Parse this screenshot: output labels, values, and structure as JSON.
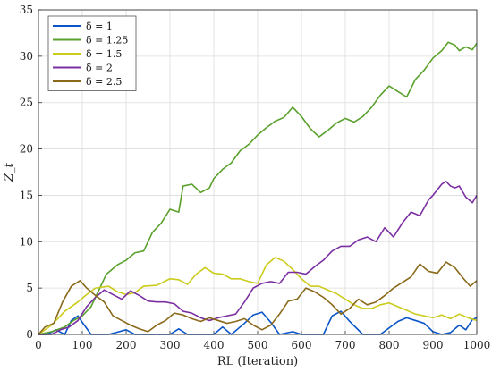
{
  "chart_data": {
    "type": "line",
    "title": "",
    "xlabel": "RL (Iteration)",
    "ylabel": "Z_t",
    "xlim": [
      0,
      1000
    ],
    "ylim": [
      0,
      35
    ],
    "xticks": [
      0,
      100,
      200,
      300,
      400,
      500,
      600,
      700,
      800,
      900,
      1000
    ],
    "yticks": [
      0,
      5,
      10,
      15,
      20,
      25,
      30,
      35
    ],
    "grid": true,
    "legend_position": "top-left",
    "series": [
      {
        "name": "δ = 1",
        "color": "#0a55c8",
        "points": [
          [
            0,
            0
          ],
          [
            20,
            0
          ],
          [
            40,
            0.5
          ],
          [
            60,
            0
          ],
          [
            75,
            1.5
          ],
          [
            90,
            2.0
          ],
          [
            100,
            1.3
          ],
          [
            120,
            0
          ],
          [
            160,
            0
          ],
          [
            200,
            0.5
          ],
          [
            220,
            0
          ],
          [
            300,
            0
          ],
          [
            320,
            0.6
          ],
          [
            340,
            0
          ],
          [
            400,
            0
          ],
          [
            420,
            0.8
          ],
          [
            440,
            0
          ],
          [
            470,
            1.2
          ],
          [
            490,
            2.1
          ],
          [
            510,
            2.4
          ],
          [
            530,
            1.3
          ],
          [
            550,
            0
          ],
          [
            580,
            0.3
          ],
          [
            600,
            0
          ],
          [
            650,
            0
          ],
          [
            670,
            2.0
          ],
          [
            690,
            2.5
          ],
          [
            710,
            1.4
          ],
          [
            740,
            0
          ],
          [
            780,
            0
          ],
          [
            820,
            1.4
          ],
          [
            840,
            1.8
          ],
          [
            860,
            1.5
          ],
          [
            880,
            1.2
          ],
          [
            900,
            0.3
          ],
          [
            920,
            0
          ],
          [
            940,
            0.2
          ],
          [
            960,
            1.0
          ],
          [
            975,
            0.5
          ],
          [
            990,
            1.6
          ],
          [
            1000,
            1.8
          ]
        ]
      },
      {
        "name": "δ = 1.25",
        "color": "#5aa02c",
        "points": [
          [
            0,
            0
          ],
          [
            30,
            0.3
          ],
          [
            60,
            0.8
          ],
          [
            80,
            1.5
          ],
          [
            100,
            2.0
          ],
          [
            120,
            3.0
          ],
          [
            140,
            5.0
          ],
          [
            155,
            6.5
          ],
          [
            180,
            7.5
          ],
          [
            200,
            8.0
          ],
          [
            220,
            8.8
          ],
          [
            240,
            9.0
          ],
          [
            260,
            11.0
          ],
          [
            280,
            12.0
          ],
          [
            300,
            13.5
          ],
          [
            320,
            13.2
          ],
          [
            330,
            16.0
          ],
          [
            350,
            16.2
          ],
          [
            370,
            15.3
          ],
          [
            390,
            15.8
          ],
          [
            400,
            16.8
          ],
          [
            420,
            17.8
          ],
          [
            440,
            18.5
          ],
          [
            460,
            19.8
          ],
          [
            480,
            20.5
          ],
          [
            500,
            21.5
          ],
          [
            520,
            22.3
          ],
          [
            540,
            23.0
          ],
          [
            560,
            23.4
          ],
          [
            580,
            24.5
          ],
          [
            600,
            23.5
          ],
          [
            620,
            22.2
          ],
          [
            640,
            21.3
          ],
          [
            660,
            22.0
          ],
          [
            680,
            22.8
          ],
          [
            700,
            23.3
          ],
          [
            720,
            22.9
          ],
          [
            740,
            23.5
          ],
          [
            760,
            24.5
          ],
          [
            780,
            25.8
          ],
          [
            800,
            26.8
          ],
          [
            820,
            26.2
          ],
          [
            840,
            25.6
          ],
          [
            860,
            27.5
          ],
          [
            880,
            28.5
          ],
          [
            900,
            29.8
          ],
          [
            920,
            30.6
          ],
          [
            935,
            31.5
          ],
          [
            950,
            31.2
          ],
          [
            960,
            30.6
          ],
          [
            975,
            31.0
          ],
          [
            990,
            30.7
          ],
          [
            1000,
            31.4
          ]
        ]
      },
      {
        "name": "δ = 1.5",
        "color": "#cbcb1c",
        "points": [
          [
            0,
            0
          ],
          [
            30,
            1.0
          ],
          [
            60,
            2.5
          ],
          [
            90,
            3.5
          ],
          [
            110,
            4.3
          ],
          [
            130,
            5.0
          ],
          [
            160,
            5.2
          ],
          [
            180,
            4.6
          ],
          [
            200,
            4.3
          ],
          [
            220,
            4.5
          ],
          [
            240,
            5.2
          ],
          [
            270,
            5.3
          ],
          [
            300,
            6.0
          ],
          [
            320,
            5.9
          ],
          [
            340,
            5.4
          ],
          [
            360,
            6.5
          ],
          [
            380,
            7.2
          ],
          [
            400,
            6.6
          ],
          [
            420,
            6.5
          ],
          [
            440,
            6.0
          ],
          [
            460,
            6.0
          ],
          [
            480,
            5.7
          ],
          [
            500,
            5.5
          ],
          [
            520,
            7.5
          ],
          [
            540,
            8.3
          ],
          [
            560,
            7.9
          ],
          [
            580,
            7.0
          ],
          [
            600,
            6.0
          ],
          [
            620,
            5.2
          ],
          [
            640,
            5.2
          ],
          [
            660,
            4.8
          ],
          [
            680,
            4.4
          ],
          [
            700,
            3.8
          ],
          [
            720,
            3.2
          ],
          [
            740,
            2.8
          ],
          [
            760,
            2.8
          ],
          [
            780,
            3.2
          ],
          [
            800,
            3.4
          ],
          [
            820,
            3.0
          ],
          [
            840,
            2.6
          ],
          [
            860,
            2.2
          ],
          [
            880,
            2.0
          ],
          [
            900,
            1.8
          ],
          [
            920,
            2.1
          ],
          [
            940,
            1.7
          ],
          [
            960,
            2.2
          ],
          [
            980,
            1.8
          ],
          [
            1000,
            1.5
          ]
        ]
      },
      {
        "name": "δ = 2",
        "color": "#7b2fa2",
        "points": [
          [
            0,
            0
          ],
          [
            30,
            0
          ],
          [
            50,
            0.5
          ],
          [
            70,
            0.8
          ],
          [
            90,
            1.5
          ],
          [
            110,
            3.0
          ],
          [
            130,
            4.0
          ],
          [
            150,
            4.8
          ],
          [
            170,
            4.3
          ],
          [
            190,
            3.8
          ],
          [
            210,
            4.7
          ],
          [
            230,
            4.2
          ],
          [
            250,
            3.6
          ],
          [
            270,
            3.5
          ],
          [
            290,
            3.5
          ],
          [
            310,
            3.3
          ],
          [
            330,
            2.5
          ],
          [
            350,
            2.3
          ],
          [
            370,
            1.8
          ],
          [
            390,
            1.5
          ],
          [
            410,
            1.8
          ],
          [
            430,
            2.0
          ],
          [
            450,
            2.2
          ],
          [
            470,
            3.5
          ],
          [
            490,
            5.0
          ],
          [
            510,
            5.5
          ],
          [
            530,
            5.7
          ],
          [
            550,
            5.5
          ],
          [
            570,
            6.7
          ],
          [
            590,
            6.7
          ],
          [
            610,
            6.5
          ],
          [
            630,
            7.3
          ],
          [
            650,
            8.0
          ],
          [
            670,
            9.0
          ],
          [
            690,
            9.5
          ],
          [
            710,
            9.5
          ],
          [
            730,
            10.2
          ],
          [
            750,
            10.5
          ],
          [
            770,
            10.0
          ],
          [
            790,
            11.5
          ],
          [
            810,
            10.5
          ],
          [
            830,
            12.0
          ],
          [
            850,
            13.2
          ],
          [
            870,
            12.8
          ],
          [
            890,
            14.5
          ],
          [
            900,
            15.0
          ],
          [
            920,
            16.2
          ],
          [
            930,
            16.5
          ],
          [
            940,
            16.0
          ],
          [
            950,
            15.8
          ],
          [
            960,
            16.0
          ],
          [
            975,
            14.8
          ],
          [
            990,
            14.2
          ],
          [
            1000,
            15.0
          ]
        ]
      },
      {
        "name": "δ = 2.5",
        "color": "#8a6a1a",
        "points": [
          [
            0,
            0
          ],
          [
            15,
            0.8
          ],
          [
            35,
            1.2
          ],
          [
            55,
            3.5
          ],
          [
            75,
            5.2
          ],
          [
            95,
            5.8
          ],
          [
            110,
            5.0
          ],
          [
            130,
            4.2
          ],
          [
            150,
            3.5
          ],
          [
            170,
            2.0
          ],
          [
            190,
            1.5
          ],
          [
            210,
            1.0
          ],
          [
            230,
            0.6
          ],
          [
            250,
            0.3
          ],
          [
            270,
            1.0
          ],
          [
            290,
            1.5
          ],
          [
            310,
            2.3
          ],
          [
            330,
            2.1
          ],
          [
            350,
            1.7
          ],
          [
            370,
            1.4
          ],
          [
            390,
            1.8
          ],
          [
            410,
            1.5
          ],
          [
            430,
            1.2
          ],
          [
            450,
            1.4
          ],
          [
            470,
            1.7
          ],
          [
            490,
            1.0
          ],
          [
            510,
            0.5
          ],
          [
            530,
            1.0
          ],
          [
            550,
            2.2
          ],
          [
            570,
            3.6
          ],
          [
            590,
            3.8
          ],
          [
            610,
            5.0
          ],
          [
            630,
            4.6
          ],
          [
            650,
            4.0
          ],
          [
            670,
            3.2
          ],
          [
            690,
            2.2
          ],
          [
            710,
            2.8
          ],
          [
            730,
            3.8
          ],
          [
            750,
            3.2
          ],
          [
            770,
            3.5
          ],
          [
            790,
            4.2
          ],
          [
            810,
            5.0
          ],
          [
            830,
            5.6
          ],
          [
            850,
            6.2
          ],
          [
            870,
            7.6
          ],
          [
            890,
            6.8
          ],
          [
            910,
            6.6
          ],
          [
            930,
            7.8
          ],
          [
            950,
            7.2
          ],
          [
            970,
            6.0
          ],
          [
            985,
            5.2
          ],
          [
            1000,
            5.8
          ]
        ]
      }
    ]
  }
}
